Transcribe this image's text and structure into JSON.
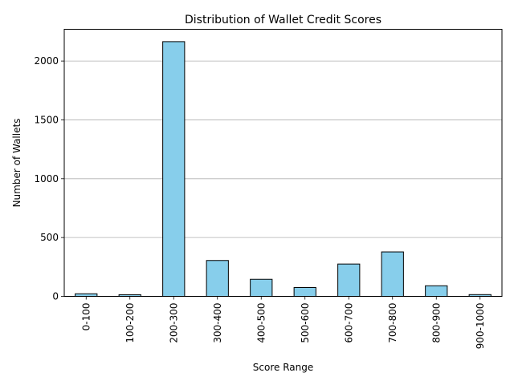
{
  "chart_data": {
    "type": "bar",
    "title": "Distribution of Wallet Credit Scores",
    "xlabel": "Score Range",
    "ylabel": "Number of Wallets",
    "categories": [
      "0-100",
      "100-200",
      "200-300",
      "300-400",
      "400-500",
      "500-600",
      "600-700",
      "700-800",
      "800-900",
      "900-1000"
    ],
    "values": [
      22,
      14,
      2165,
      305,
      145,
      75,
      275,
      378,
      90,
      15
    ],
    "ylim": [
      0,
      2270
    ],
    "yticks": [
      0,
      500,
      1000,
      1500,
      2000
    ],
    "grid": "y",
    "bar_color": "#87CEEB",
    "edge_color": "#000000",
    "grid_color": "#b0b0b0"
  }
}
